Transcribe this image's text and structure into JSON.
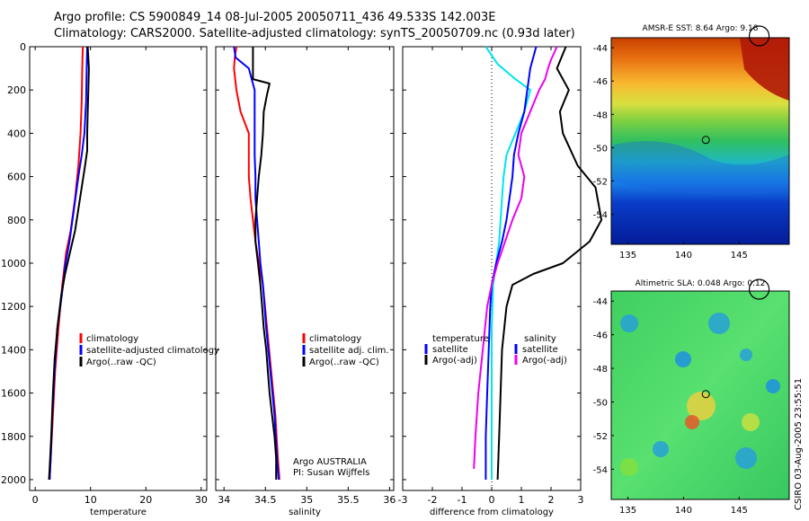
{
  "titles": {
    "line1": "Argo profile: CS 5900849_14 08-Jul-2005 20050711_436 49.533S 142.003E",
    "line2": "Climatology: CARS2000. Satellite-adjusted climatology: synTS_20050709.nc (0.93d later)"
  },
  "colors": {
    "red": "#ff0000",
    "blue": "#0000ff",
    "black": "#000000",
    "cyan": "#00e5ee",
    "magenta": "#ee00ee"
  },
  "chart_data": [
    {
      "id": "temperature",
      "type": "line",
      "xlabel": "temperature",
      "xlim": [
        -1,
        31
      ],
      "ylim": [
        0,
        2050
      ],
      "xticks": [
        0,
        10,
        20,
        30
      ],
      "yticks": [
        0,
        200,
        400,
        600,
        800,
        1000,
        1200,
        1400,
        1600,
        1800,
        2000
      ],
      "legend": [
        "climatology",
        "satellite-adjusted climatology",
        "Argo(..raw -QC)"
      ],
      "series": [
        {
          "name": "climatology",
          "color": "red",
          "points": [
            [
              8.6,
              0
            ],
            [
              8.5,
              100
            ],
            [
              8.4,
              250
            ],
            [
              8.2,
              400
            ],
            [
              7.8,
              550
            ],
            [
              7.2,
              700
            ],
            [
              6.4,
              850
            ],
            [
              5.6,
              950
            ],
            [
              4.9,
              1100
            ],
            [
              4.2,
              1300
            ],
            [
              3.6,
              1500
            ],
            [
              3.2,
              1700
            ],
            [
              2.8,
              1900
            ],
            [
              2.6,
              2000
            ]
          ]
        },
        {
          "name": "satellite-adjusted climatology",
          "color": "blue",
          "points": [
            [
              9.4,
              0
            ],
            [
              9.3,
              100
            ],
            [
              9.2,
              250
            ],
            [
              8.9,
              400
            ],
            [
              8.4,
              500
            ],
            [
              7.8,
              600
            ],
            [
              7.0,
              750
            ],
            [
              6.2,
              900
            ],
            [
              5.5,
              1000
            ],
            [
              4.8,
              1150
            ],
            [
              4.0,
              1300
            ],
            [
              3.5,
              1500
            ],
            [
              3.1,
              1700
            ],
            [
              2.8,
              1900
            ],
            [
              2.6,
              2000
            ]
          ]
        },
        {
          "name": "Argo(..raw -QC)",
          "color": "black",
          "points": [
            [
              9.5,
              0
            ],
            [
              9.7,
              100
            ],
            [
              9.6,
              200
            ],
            [
              9.5,
              300
            ],
            [
              9.4,
              400
            ],
            [
              9.4,
              480
            ],
            [
              9.0,
              550
            ],
            [
              8.4,
              650
            ],
            [
              7.8,
              750
            ],
            [
              7.2,
              850
            ],
            [
              6.3,
              950
            ],
            [
              5.4,
              1050
            ],
            [
              4.7,
              1150
            ],
            [
              4.0,
              1300
            ],
            [
              3.5,
              1450
            ],
            [
              3.2,
              1600
            ],
            [
              2.9,
              1800
            ],
            [
              2.6,
              1950
            ],
            [
              2.5,
              2000
            ]
          ]
        }
      ]
    },
    {
      "id": "salinity",
      "type": "line",
      "xlabel": "salinity",
      "xlim": [
        33.9,
        36.05
      ],
      "ylim": [
        0,
        2050
      ],
      "xticks": [
        34,
        34.5,
        35,
        35.5,
        36
      ],
      "yticks": [
        0,
        200,
        400,
        600,
        800,
        1000,
        1200,
        1400,
        1600,
        1800,
        2000
      ],
      "legend": [
        "climatology",
        "satellite adj. clim.",
        "Argo(..raw -QC)"
      ],
      "annotation": [
        "Argo AUSTRALIA",
        "PI: Susan Wijffels"
      ],
      "series": [
        {
          "name": "climatology",
          "color": "red",
          "points": [
            [
              34.15,
              0
            ],
            [
              34.13,
              50
            ],
            [
              34.12,
              100
            ],
            [
              34.15,
              200
            ],
            [
              34.2,
              300
            ],
            [
              34.3,
              400
            ],
            [
              34.3,
              500
            ],
            [
              34.3,
              600
            ],
            [
              34.32,
              700
            ],
            [
              34.35,
              800
            ],
            [
              34.38,
              900
            ],
            [
              34.42,
              1000
            ],
            [
              34.47,
              1100
            ],
            [
              34.52,
              1300
            ],
            [
              34.57,
              1500
            ],
            [
              34.62,
              1700
            ],
            [
              34.65,
              1900
            ],
            [
              34.67,
              2000
            ]
          ]
        },
        {
          "name": "satellite adj. clim.",
          "color": "blue",
          "points": [
            [
              34.12,
              0
            ],
            [
              34.14,
              50
            ],
            [
              34.3,
              100
            ],
            [
              34.37,
              200
            ],
            [
              34.37,
              400
            ],
            [
              34.37,
              500
            ],
            [
              34.38,
              600
            ],
            [
              34.38,
              700
            ],
            [
              34.4,
              800
            ],
            [
              34.42,
              900
            ],
            [
              34.44,
              1000
            ],
            [
              34.47,
              1100
            ],
            [
              34.51,
              1300
            ],
            [
              34.56,
              1500
            ],
            [
              34.61,
              1700
            ],
            [
              34.64,
              1900
            ],
            [
              34.66,
              2000
            ]
          ]
        },
        {
          "name": "Argo(..raw -QC)",
          "color": "black",
          "points": [
            [
              34.35,
              0
            ],
            [
              34.35,
              100
            ],
            [
              34.35,
              150
            ],
            [
              34.55,
              170
            ],
            [
              34.52,
              220
            ],
            [
              34.48,
              300
            ],
            [
              34.47,
              400
            ],
            [
              34.45,
              500
            ],
            [
              34.42,
              600
            ],
            [
              34.4,
              700
            ],
            [
              34.38,
              800
            ],
            [
              34.38,
              900
            ],
            [
              34.41,
              1000
            ],
            [
              34.44,
              1100
            ],
            [
              34.46,
              1200
            ],
            [
              34.48,
              1300
            ],
            [
              34.51,
              1400
            ],
            [
              34.53,
              1500
            ],
            [
              34.55,
              1600
            ],
            [
              34.58,
              1700
            ],
            [
              34.61,
              1800
            ],
            [
              34.63,
              1900
            ],
            [
              34.63,
              2000
            ]
          ]
        }
      ]
    },
    {
      "id": "difference",
      "type": "line",
      "xlabel": "difference from climatology",
      "xlim": [
        -3,
        3
      ],
      "ylim": [
        0,
        2050
      ],
      "xticks": [
        -3,
        -2,
        -1,
        0,
        1,
        2,
        3
      ],
      "yticks": [
        0,
        200,
        400,
        600,
        800,
        1000,
        1200,
        1400,
        1600,
        1800,
        2000
      ],
      "legend_left_header": "temperature",
      "legend_right_header": "salinity",
      "legend_left": [
        "satellite",
        "Argo(-adj)"
      ],
      "legend_right": [
        "satellite",
        "Argo(-adj)"
      ],
      "series": [
        {
          "name": "temperature satellite",
          "color": "cyan",
          "points": [
            [
              -0.2,
              0
            ],
            [
              0.2,
              80
            ],
            [
              0.8,
              150
            ],
            [
              1.3,
              200
            ],
            [
              1.1,
              300
            ],
            [
              0.8,
              400
            ],
            [
              0.5,
              500
            ],
            [
              0.4,
              600
            ],
            [
              0.35,
              700
            ],
            [
              0.3,
              800
            ],
            [
              0.25,
              900
            ],
            [
              0.15,
              1000
            ],
            [
              0.05,
              1100
            ],
            [
              0.0,
              1300
            ],
            [
              0.0,
              1600
            ],
            [
              0.0,
              2000
            ]
          ]
        },
        {
          "name": "temperature Argo(-adj)",
          "color": "black",
          "points": [
            [
              2.5,
              0
            ],
            [
              2.2,
              100
            ],
            [
              2.6,
              200
            ],
            [
              2.3,
              300
            ],
            [
              2.4,
              400
            ],
            [
              2.9,
              550
            ],
            [
              3.5,
              650
            ],
            [
              3.7,
              800
            ],
            [
              3.3,
              900
            ],
            [
              2.4,
              1000
            ],
            [
              1.4,
              1050
            ],
            [
              0.7,
              1100
            ],
            [
              0.5,
              1200
            ],
            [
              0.35,
              1400
            ],
            [
              0.3,
              1600
            ],
            [
              0.25,
              1800
            ],
            [
              0.2,
              2000
            ]
          ]
        },
        {
          "name": "salinity satellite",
          "color": "blue",
          "points": [
            [
              1.5,
              0
            ],
            [
              1.3,
              100
            ],
            [
              1.2,
              200
            ],
            [
              1.1,
              300
            ],
            [
              0.9,
              400
            ],
            [
              0.75,
              500
            ],
            [
              0.7,
              600
            ],
            [
              0.6,
              700
            ],
            [
              0.5,
              800
            ],
            [
              0.35,
              900
            ],
            [
              0.15,
              1000
            ],
            [
              0.0,
              1100
            ],
            [
              -0.05,
              1200
            ],
            [
              -0.1,
              1400
            ],
            [
              -0.15,
              1600
            ],
            [
              -0.2,
              1800
            ],
            [
              -0.2,
              2000
            ]
          ]
        },
        {
          "name": "salinity Argo(-adj)",
          "color": "magenta",
          "points": [
            [
              2.2,
              0
            ],
            [
              2.0,
              60
            ],
            [
              1.9,
              100
            ],
            [
              1.8,
              150
            ],
            [
              1.6,
              200
            ],
            [
              1.3,
              300
            ],
            [
              1.0,
              400
            ],
            [
              0.9,
              500
            ],
            [
              1.1,
              600
            ],
            [
              1.0,
              700
            ],
            [
              0.7,
              800
            ],
            [
              0.45,
              900
            ],
            [
              0.2,
              1000
            ],
            [
              0.0,
              1100
            ],
            [
              -0.15,
              1200
            ],
            [
              -0.3,
              1400
            ],
            [
              -0.45,
              1600
            ],
            [
              -0.55,
              1800
            ],
            [
              -0.6,
              1950
            ]
          ]
        }
      ]
    },
    {
      "id": "sst-map",
      "type": "heatmap",
      "title": "AMSR-E SST: 8.64 Argo: 9.18",
      "xticks": [
        135,
        140,
        145
      ],
      "yticks": [
        -44,
        -46,
        -48,
        -50,
        -52,
        -54
      ],
      "xlim": [
        133.5,
        149.5
      ],
      "ylim": [
        -55.8,
        -43.4
      ],
      "marker": [
        142.003,
        -49.533
      ]
    },
    {
      "id": "sla-map",
      "type": "heatmap",
      "title": "Altimetric SLA: 0.048 Argo: 0.12",
      "xticks": [
        135,
        140,
        145
      ],
      "yticks": [
        -44,
        -46,
        -48,
        -50,
        -52,
        -54
      ],
      "xlim": [
        133.5,
        149.5
      ],
      "ylim": [
        -55.8,
        -43.4
      ],
      "marker": [
        142.003,
        -49.533
      ]
    }
  ],
  "footer_text": "CSIRO 03-Aug-2005 23:55:51"
}
